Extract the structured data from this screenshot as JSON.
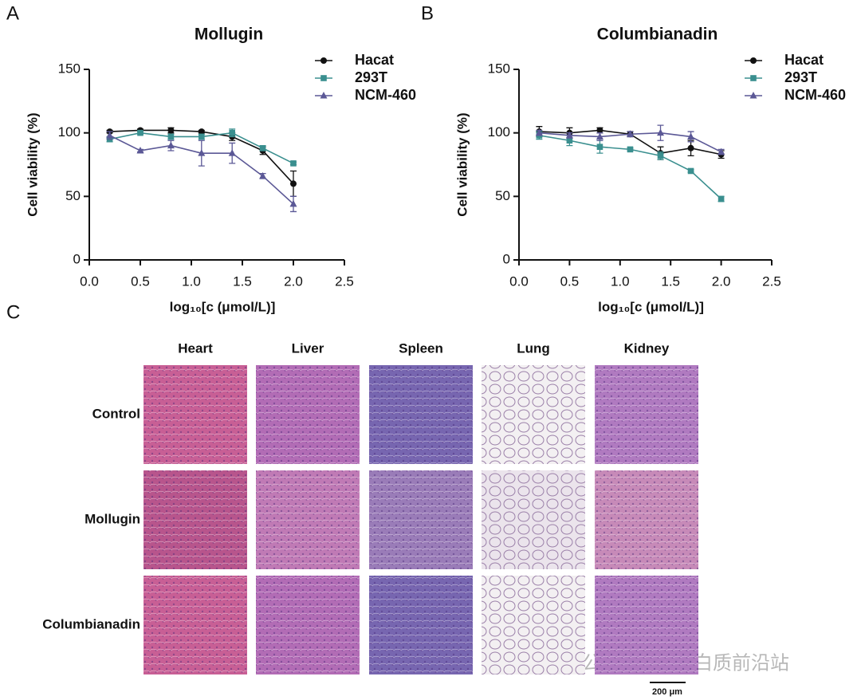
{
  "panels": [
    "A",
    "B",
    "C"
  ],
  "chart_data": [
    {
      "type": "line",
      "title": "Mollugin",
      "x_label": "log₁₀[c (μmol/L)]",
      "y_label": "Cell viability (%)",
      "x": [
        0.2,
        0.5,
        0.8,
        1.1,
        1.4,
        1.7,
        2.0
      ],
      "series": [
        {
          "name": "Hacat",
          "color": "#111111",
          "marker": "circle",
          "values": [
            101,
            102,
            102,
            101,
            97,
            86,
            60
          ],
          "errors": [
            1,
            1,
            2,
            1,
            3,
            3,
            10
          ]
        },
        {
          "name": "293T",
          "color": "#3a8f8f",
          "marker": "square",
          "values": [
            95,
            100,
            97,
            97,
            100,
            88,
            76
          ],
          "errors": [
            2,
            1,
            2,
            2,
            3,
            2,
            1
          ]
        },
        {
          "name": "NCM-460",
          "color": "#5b5896",
          "marker": "triangle",
          "values": [
            98,
            86,
            90,
            84,
            84,
            66,
            44
          ],
          "errors": [
            3,
            1,
            4,
            10,
            8,
            2,
            6
          ]
        }
      ],
      "xlim": [
        0,
        2.5
      ],
      "xticks": [
        {
          "value": 0,
          "label": "0.0"
        },
        0.5,
        {
          "value": 1,
          "label": "1.0"
        },
        1.5,
        {
          "value": 2,
          "label": "2.0"
        },
        2.5
      ],
      "ylim": [
        0,
        150
      ],
      "yticks": [
        0,
        50,
        100,
        150
      ],
      "legend": "upper right"
    },
    {
      "type": "line",
      "title": "Columbianadin",
      "x_label": "log₁₀[c (μmol/L)]",
      "y_label": "Cell viability (%)",
      "x": [
        0.2,
        0.5,
        0.8,
        1.1,
        1.4,
        1.7,
        2.0
      ],
      "series": [
        {
          "name": "Hacat",
          "color": "#111111",
          "marker": "circle",
          "values": [
            101,
            100,
            102,
            99,
            84,
            88,
            83
          ],
          "errors": [
            4,
            4,
            2,
            2,
            5,
            6,
            3
          ]
        },
        {
          "name": "293T",
          "color": "#3a8f8f",
          "marker": "square",
          "values": [
            98,
            94,
            89,
            87,
            82,
            70,
            48
          ],
          "errors": [
            3,
            4,
            5,
            1,
            3,
            1,
            2
          ]
        },
        {
          "name": "NCM-460",
          "color": "#5b5896",
          "marker": "triangle",
          "values": [
            100,
            98,
            97,
            99,
            100,
            97,
            85
          ],
          "errors": [
            2,
            2,
            3,
            2,
            6,
            4,
            2
          ]
        }
      ],
      "xlim": [
        0,
        2.5
      ],
      "xticks": [
        {
          "value": 0,
          "label": "0.0"
        },
        0.5,
        {
          "value": 1,
          "label": "1.0"
        },
        1.5,
        {
          "value": 2,
          "label": "2.0"
        },
        2.5
      ],
      "ylim": [
        0,
        150
      ],
      "yticks": [
        0,
        50,
        100,
        150
      ],
      "legend": "upper right"
    }
  ],
  "histology": {
    "columns": [
      "Heart",
      "Liver",
      "Spleen",
      "Lung",
      "Kidney"
    ],
    "rows": [
      "Control",
      "Mollugin",
      "Columbianadin"
    ],
    "scale_bar": "200 μm"
  },
  "watermark": "公众号 · AI蛋白质前沿站"
}
